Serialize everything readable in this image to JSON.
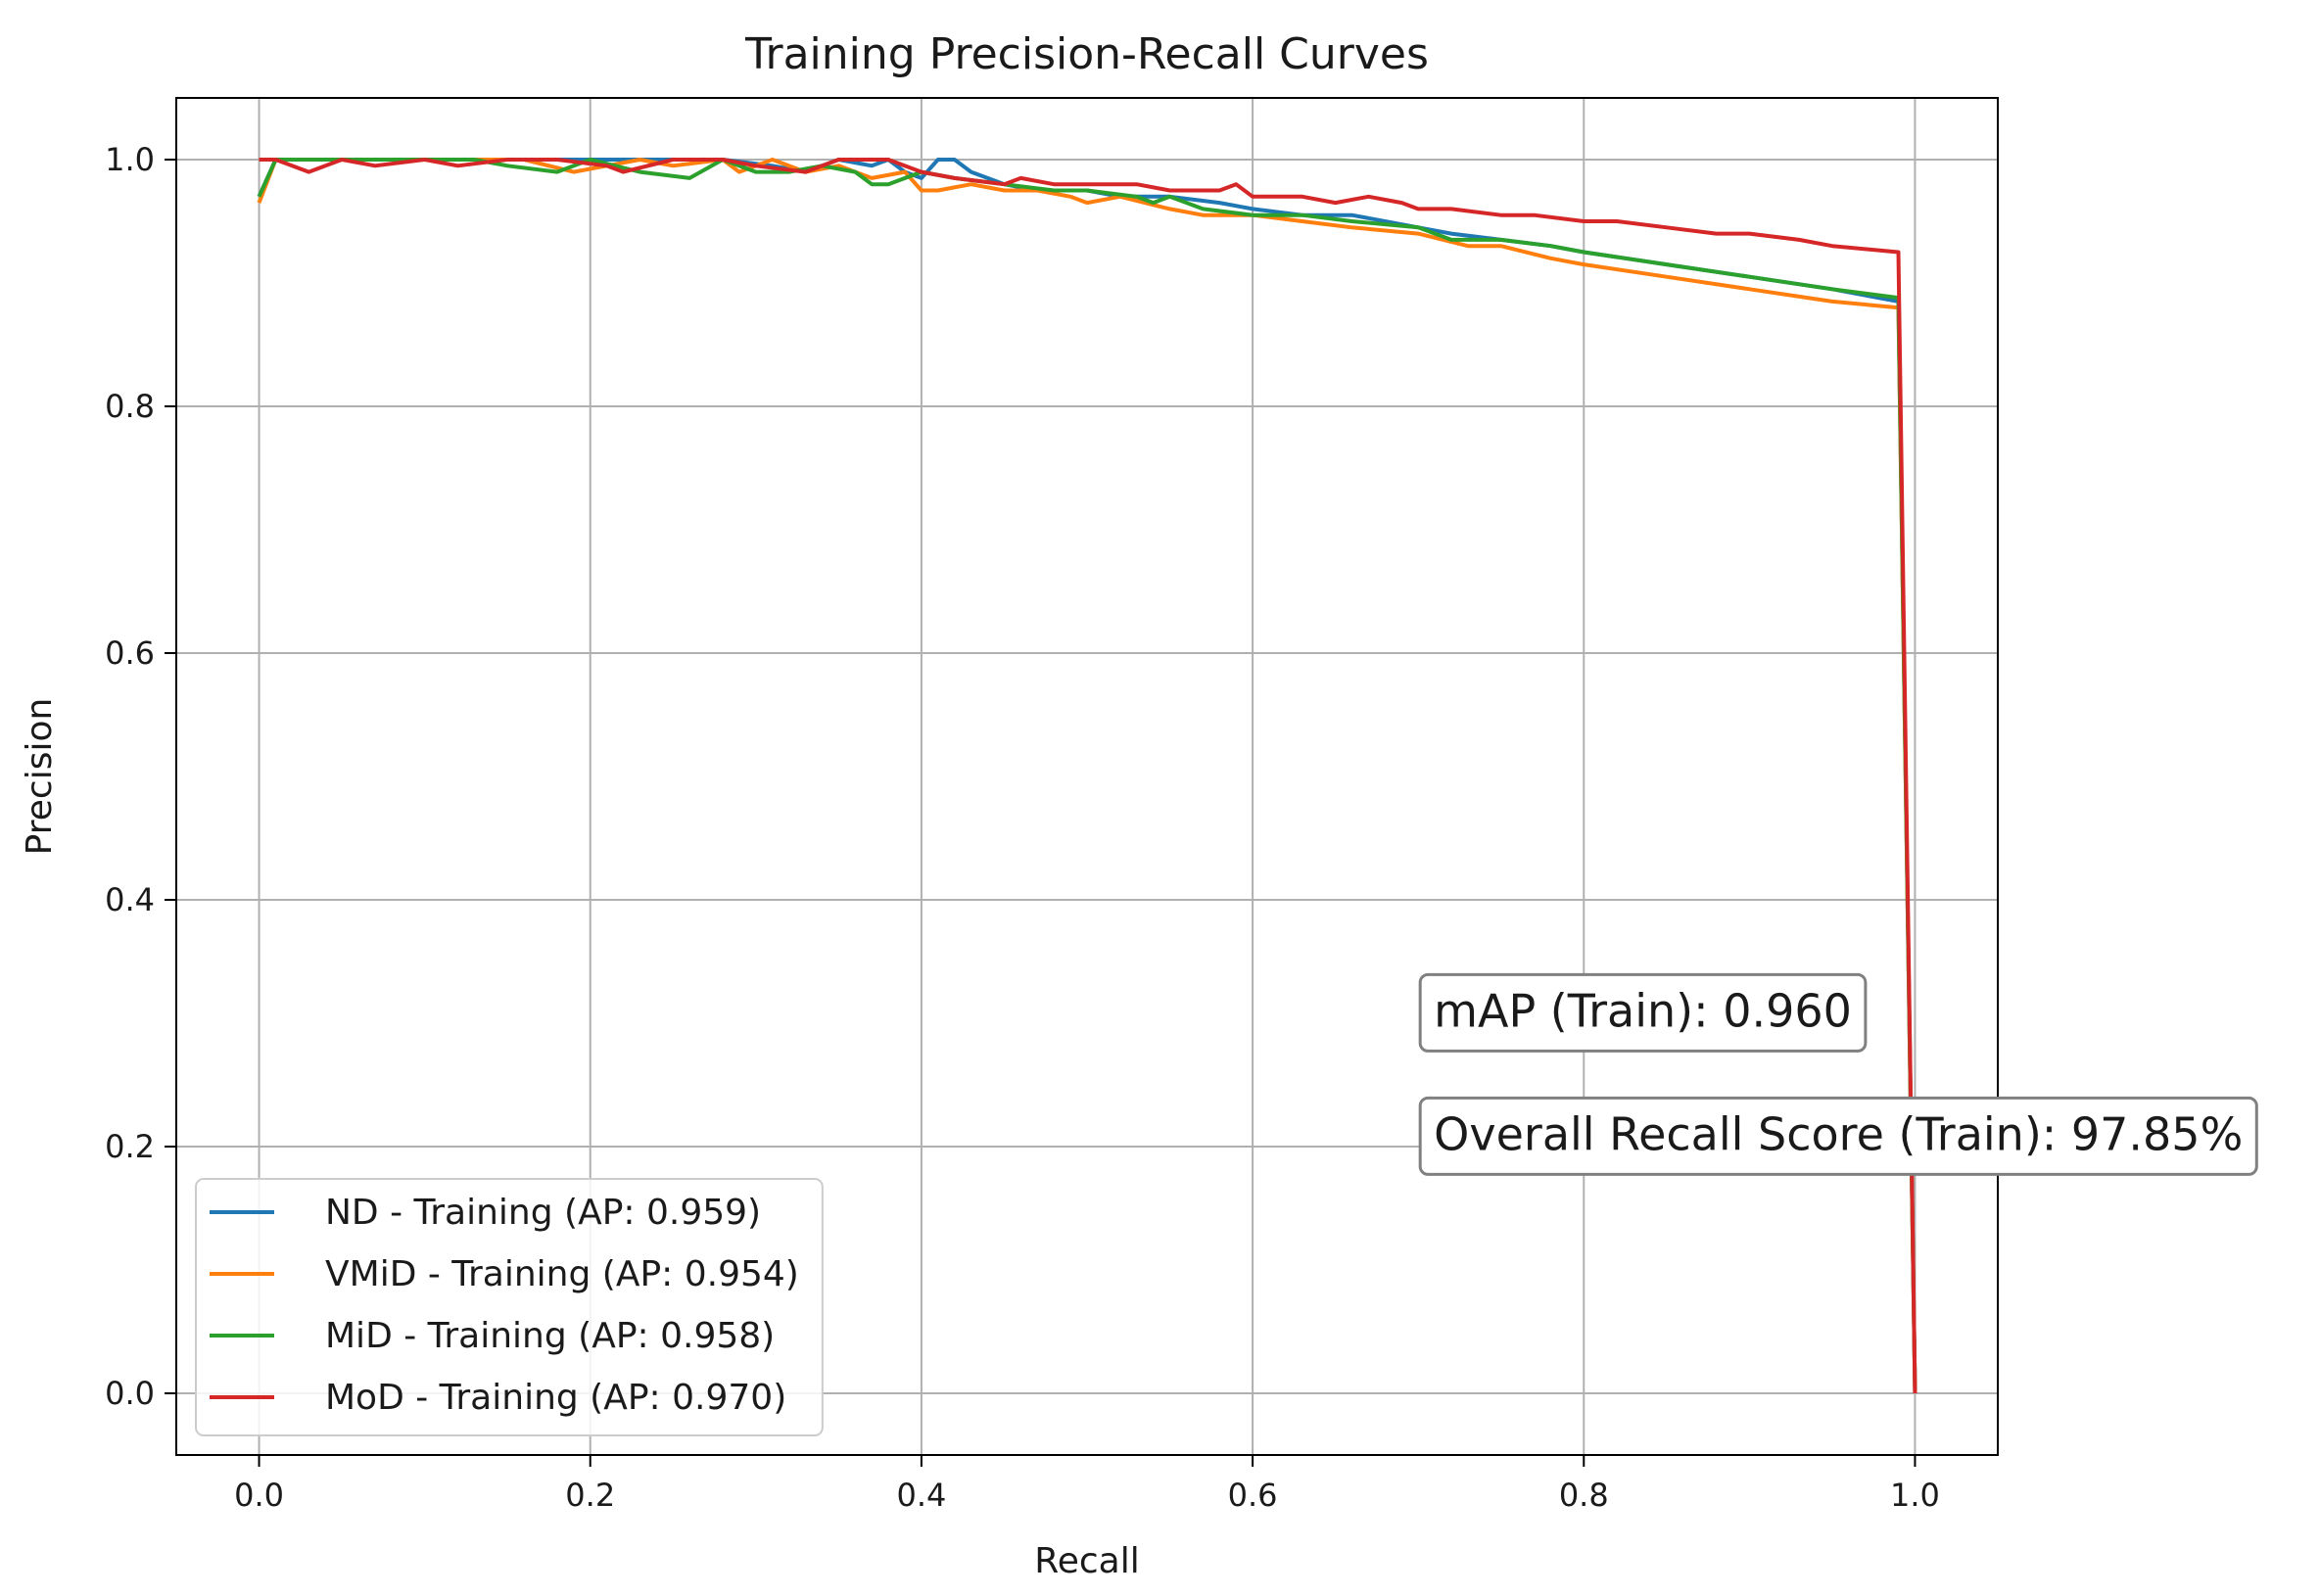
{
  "chart_data": {
    "type": "line",
    "title": "Training Precision-Recall Curves",
    "xlabel": "Recall",
    "ylabel": "Precision",
    "xlim": [
      -0.05,
      1.05
    ],
    "ylim": [
      -0.05,
      1.05
    ],
    "grid": true,
    "xticks": [
      0.0,
      0.2,
      0.4,
      0.6,
      0.8,
      1.0
    ],
    "xtick_labels": [
      "0.0",
      "0.2",
      "0.4",
      "0.6",
      "0.8",
      "1.0"
    ],
    "yticks": [
      0.0,
      0.2,
      0.4,
      0.6,
      0.8,
      1.0
    ],
    "ytick_labels": [
      "0.0",
      "0.2",
      "0.4",
      "0.6",
      "0.8",
      "1.0"
    ],
    "legend_position": "lower-left",
    "series": [
      {
        "name": "ND - Training (AP: 0.959)",
        "color": "#1f77b4",
        "x": [
          0.0,
          0.01,
          0.03,
          0.05,
          0.08,
          0.1,
          0.13,
          0.16,
          0.19,
          0.22,
          0.25,
          0.28,
          0.31,
          0.33,
          0.35,
          0.37,
          0.38,
          0.39,
          0.4,
          0.41,
          0.42,
          0.43,
          0.45,
          0.47,
          0.5,
          0.52,
          0.55,
          0.58,
          0.6,
          0.63,
          0.66,
          0.7,
          0.72,
          0.75,
          0.78,
          0.8,
          0.85,
          0.9,
          0.95,
          0.99,
          1.0
        ],
        "y": [
          0.97,
          1.0,
          1.0,
          1.0,
          1.0,
          1.0,
          1.0,
          1.0,
          1.0,
          1.0,
          1.0,
          1.0,
          0.995,
          0.99,
          1.0,
          0.995,
          1.0,
          0.99,
          0.985,
          1.0,
          1.0,
          0.99,
          0.98,
          0.975,
          0.975,
          0.97,
          0.97,
          0.965,
          0.96,
          0.955,
          0.955,
          0.945,
          0.94,
          0.935,
          0.93,
          0.925,
          0.915,
          0.905,
          0.895,
          0.885,
          0.0
        ]
      },
      {
        "name": "VMiD - Training (AP: 0.954)",
        "color": "#ff7f0e",
        "x": [
          0.0,
          0.01,
          0.03,
          0.05,
          0.08,
          0.1,
          0.13,
          0.16,
          0.19,
          0.21,
          0.23,
          0.25,
          0.28,
          0.29,
          0.31,
          0.33,
          0.35,
          0.37,
          0.39,
          0.4,
          0.41,
          0.43,
          0.45,
          0.47,
          0.49,
          0.5,
          0.52,
          0.55,
          0.57,
          0.6,
          0.63,
          0.66,
          0.7,
          0.73,
          0.75,
          0.78,
          0.8,
          0.85,
          0.9,
          0.95,
          0.99,
          1.0
        ],
        "y": [
          0.965,
          1.0,
          1.0,
          1.0,
          1.0,
          1.0,
          1.0,
          1.0,
          0.99,
          0.995,
          1.0,
          0.995,
          1.0,
          0.99,
          1.0,
          0.99,
          0.995,
          0.985,
          0.99,
          0.975,
          0.975,
          0.98,
          0.975,
          0.975,
          0.97,
          0.965,
          0.97,
          0.96,
          0.955,
          0.955,
          0.95,
          0.945,
          0.94,
          0.93,
          0.93,
          0.92,
          0.915,
          0.905,
          0.895,
          0.885,
          0.88,
          0.0
        ]
      },
      {
        "name": "MiD - Training (AP: 0.958)",
        "color": "#2ca02c",
        "x": [
          0.0,
          0.01,
          0.03,
          0.05,
          0.08,
          0.1,
          0.13,
          0.15,
          0.18,
          0.2,
          0.23,
          0.26,
          0.28,
          0.3,
          0.32,
          0.34,
          0.36,
          0.37,
          0.38,
          0.4,
          0.42,
          0.45,
          0.48,
          0.5,
          0.53,
          0.54,
          0.55,
          0.57,
          0.6,
          0.63,
          0.66,
          0.7,
          0.72,
          0.75,
          0.78,
          0.8,
          0.85,
          0.9,
          0.95,
          0.99,
          1.0
        ],
        "y": [
          0.97,
          1.0,
          1.0,
          1.0,
          1.0,
          1.0,
          1.0,
          0.995,
          0.99,
          1.0,
          0.99,
          0.985,
          1.0,
          0.99,
          0.99,
          0.995,
          0.99,
          0.98,
          0.98,
          0.99,
          0.985,
          0.98,
          0.975,
          0.975,
          0.97,
          0.965,
          0.97,
          0.96,
          0.955,
          0.955,
          0.95,
          0.945,
          0.935,
          0.935,
          0.93,
          0.925,
          0.915,
          0.905,
          0.895,
          0.888,
          0.0
        ]
      },
      {
        "name": "MoD - Training (AP: 0.970)",
        "color": "#d62728",
        "x": [
          0.0,
          0.01,
          0.03,
          0.05,
          0.07,
          0.1,
          0.12,
          0.15,
          0.18,
          0.21,
          0.22,
          0.25,
          0.28,
          0.3,
          0.33,
          0.35,
          0.38,
          0.4,
          0.42,
          0.45,
          0.46,
          0.48,
          0.5,
          0.53,
          0.55,
          0.58,
          0.59,
          0.6,
          0.63,
          0.65,
          0.67,
          0.69,
          0.7,
          0.72,
          0.75,
          0.77,
          0.8,
          0.82,
          0.85,
          0.88,
          0.9,
          0.93,
          0.95,
          0.99,
          1.0
        ],
        "y": [
          1.0,
          1.0,
          0.99,
          1.0,
          0.995,
          1.0,
          0.995,
          1.0,
          1.0,
          0.995,
          0.99,
          1.0,
          1.0,
          0.995,
          0.99,
          1.0,
          1.0,
          0.99,
          0.985,
          0.98,
          0.985,
          0.98,
          0.98,
          0.98,
          0.975,
          0.975,
          0.98,
          0.97,
          0.97,
          0.965,
          0.97,
          0.965,
          0.96,
          0.96,
          0.955,
          0.955,
          0.95,
          0.95,
          0.945,
          0.94,
          0.94,
          0.935,
          0.93,
          0.925,
          0.0
        ]
      }
    ],
    "annotations": [
      {
        "text": "mAP (Train): 0.960",
        "x": 0.7,
        "y": 0.31
      },
      {
        "text": "Overall Recall Score (Train): 97.85%",
        "x": 0.7,
        "y": 0.21
      }
    ]
  }
}
